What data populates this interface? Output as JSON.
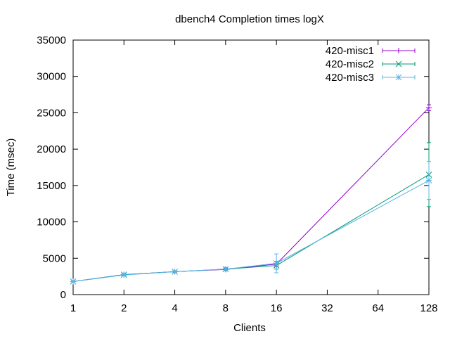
{
  "chart_data": {
    "type": "line",
    "title": "dbench4 Completion times logX",
    "xlabel": "Clients",
    "ylabel": "Time (msec)",
    "x_scale": "log2",
    "x": [
      1,
      2,
      4,
      8,
      16,
      128
    ],
    "x_ticks": [
      1,
      2,
      4,
      8,
      16,
      32,
      64,
      128
    ],
    "y_ticks": [
      0,
      5000,
      10000,
      15000,
      20000,
      25000,
      30000,
      35000
    ],
    "xlim": [
      1,
      128
    ],
    "ylim": [
      0,
      35000
    ],
    "grid": false,
    "legend_position": "top-right",
    "series": [
      {
        "name": "420-misc1",
        "color": "#9400d3",
        "marker": "plus",
        "values": [
          1800,
          2750,
          3150,
          3450,
          4200,
          25700
        ],
        "err": [
          60,
          100,
          120,
          150,
          350,
          400
        ]
      },
      {
        "name": "420-misc2",
        "color": "#009e73",
        "marker": "cross",
        "values": [
          1800,
          2750,
          3150,
          3500,
          4000,
          16500
        ],
        "err": [
          60,
          100,
          120,
          200,
          500,
          4400
        ]
      },
      {
        "name": "420-misc3",
        "color": "#56b4e9",
        "marker": "star",
        "values": [
          1800,
          2700,
          3150,
          3500,
          4300,
          15700
        ],
        "err": [
          60,
          100,
          150,
          250,
          1300,
          2600
        ]
      }
    ]
  }
}
